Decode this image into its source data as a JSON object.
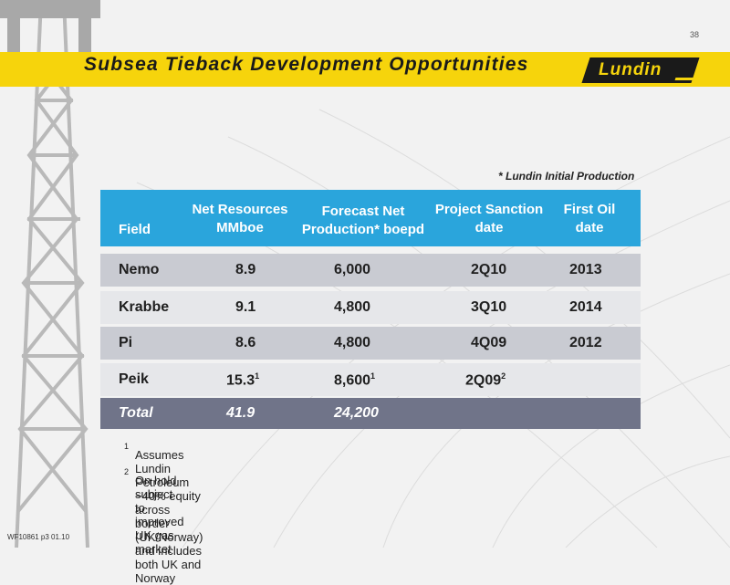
{
  "page_number": "38",
  "title": "Subsea Tieback Development Opportunities",
  "logo_text": "Lundin",
  "note_initial_production": "* Lundin Initial Production",
  "table": {
    "headers": {
      "field": "Field",
      "resources_line1": "Net Resources",
      "resources_line2": "MMboe",
      "production_line1": "Forecast Net",
      "production_line2": "Production* boepd",
      "sanction_line1": "Project Sanction",
      "sanction_line2": "date",
      "firstoil_line1": "First Oil",
      "firstoil_line2": "date"
    },
    "rows": [
      {
        "field": "Nemo",
        "resources": "8.9",
        "resources_sup": "",
        "production": "6,000",
        "production_sup": "",
        "sanction": "2Q10",
        "sanction_sup": "",
        "first_oil": "2013"
      },
      {
        "field": "Krabbe",
        "resources": "9.1",
        "resources_sup": "",
        "production": "4,800",
        "production_sup": "",
        "sanction": "3Q10",
        "sanction_sup": "",
        "first_oil": "2014"
      },
      {
        "field": "Pi",
        "resources": "8.6",
        "resources_sup": "",
        "production": "4,800",
        "production_sup": "",
        "sanction": "4Q09",
        "sanction_sup": "",
        "first_oil": "2012"
      },
      {
        "field": "Peik",
        "resources": "15.3",
        "resources_sup": "1",
        "production": "8,600",
        "production_sup": "1",
        "sanction": "2Q09",
        "sanction_sup": "2",
        "first_oil": ""
      }
    ],
    "total": {
      "label": "Total",
      "resources": "41.9",
      "production": "24,200"
    }
  },
  "footnotes": [
    {
      "num": "1",
      "text": "Assumes Lundin Petroleum ~40% equity across border (UK/Norway) and includes both UK and Norway"
    },
    {
      "num": "2",
      "text": "On hold subject to improved UK gas market"
    }
  ],
  "doc_id": "WF10861 p3 01.10",
  "colors": {
    "title_band": "#f6d40c",
    "header": "#2aa5dc",
    "row_dark": "#c9cbd2",
    "row_light": "#e6e7ea",
    "total_row": "#707489"
  }
}
